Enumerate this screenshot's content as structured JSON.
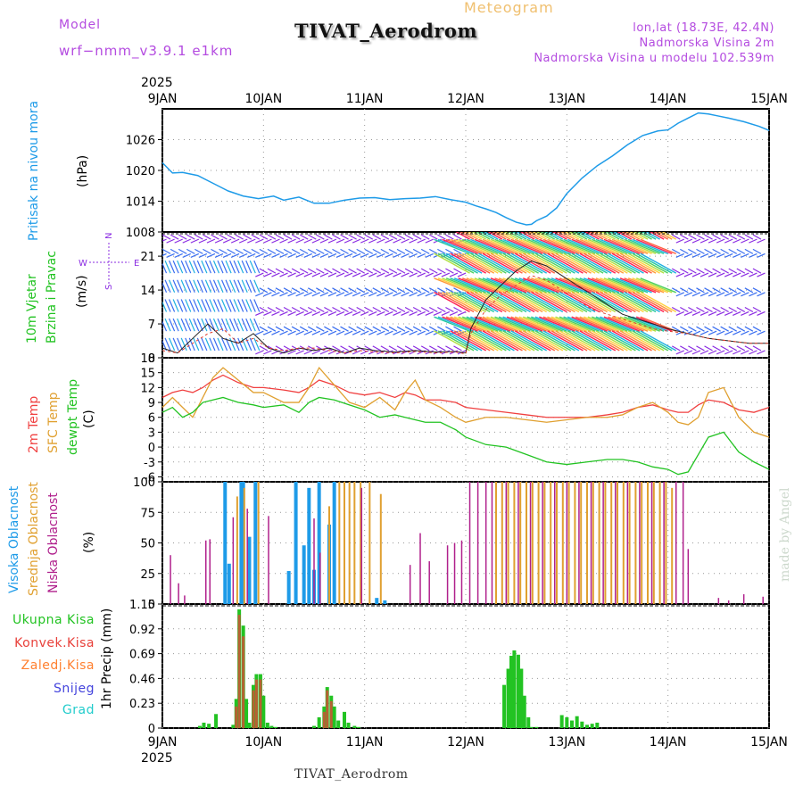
{
  "header": {
    "model_label": "Model",
    "model_version": "wrf−nmm_v3.9.1  e1km",
    "meteogram_label": "Meteogram",
    "station_title": "TIVAT_Aerodrom",
    "location": "lon,lat (18.73E, 42.4N)",
    "elevation": "Nadmorska Visina 2m",
    "model_elevation": "Nadmorska Visina u modelu 102.539m"
  },
  "footer": {
    "station": "TIVAT_Aerodrom",
    "credit": "made by Angel"
  },
  "colors": {
    "pressure": "#1e9be8",
    "wind_blue": "#3a6ef0",
    "wind_purple": "#8a2be2",
    "temp2m": "#f04040",
    "sfc_temp": "#e0a030",
    "dewpoint": "#22c322",
    "high_cloud": "#1e9be8",
    "mid_cloud": "#e0a030",
    "low_cloud": "#b0208c",
    "total_rain": "#22c322",
    "conv_rain": "#e8403a",
    "freezing_rain": "#ff8030",
    "snow": "#4444dd",
    "hail": "#22cccc",
    "gust_line": "#222222",
    "speed_line": "#e04030"
  },
  "chart_data": [
    {
      "type": "line",
      "panel": "pressure",
      "ylabel": [
        "Pritisak na nivou mora",
        "(hPa)"
      ],
      "ylim": [
        1008,
        1032
      ],
      "yticks": [
        1008,
        1014,
        1020,
        1026
      ],
      "x_tick_labels": [
        "9JAN",
        "10JAN",
        "11JAN",
        "12JAN",
        "13JAN",
        "14JAN",
        "15JAN"
      ],
      "x_top_year": "2025",
      "x_days": [
        0,
        0.5,
        1,
        1.5,
        2,
        2.5,
        3,
        3.5,
        4,
        4.5,
        5,
        5.5,
        6
      ],
      "series": [
        {
          "x": [
            0,
            0.1,
            0.2,
            0.35,
            0.5,
            0.65,
            0.8,
            0.95,
            1.1,
            1.2,
            1.35,
            1.5,
            1.65,
            1.8,
            1.95,
            2.1,
            2.25,
            2.4,
            2.55,
            2.7,
            2.85,
            3.0,
            3.1,
            3.2,
            3.3,
            3.4,
            3.5,
            3.6,
            3.65,
            3.7,
            3.8,
            3.9,
            4.0,
            4.15,
            4.3,
            4.45,
            4.6,
            4.75,
            4.9,
            5.0,
            5.1,
            5.2,
            5.3,
            5.4,
            5.5,
            5.6,
            5.75,
            5.9,
            6.0
          ],
          "y": [
            1021.5,
            1019.5,
            1019.6,
            1019.0,
            1017.5,
            1016.0,
            1015.0,
            1014.5,
            1015.0,
            1014.2,
            1014.8,
            1013.6,
            1013.6,
            1014.2,
            1014.6,
            1014.7,
            1014.3,
            1014.5,
            1014.6,
            1014.9,
            1014.3,
            1013.8,
            1013.1,
            1012.5,
            1011.8,
            1010.8,
            1009.9,
            1009.4,
            1009.5,
            1010.2,
            1011.1,
            1012.7,
            1015.5,
            1018.5,
            1020.9,
            1022.8,
            1025.0,
            1026.8,
            1027.7,
            1027.9,
            1029.2,
            1030.2,
            1031.2,
            1031.0,
            1030.6,
            1030.2,
            1029.5,
            1028.6,
            1027.8
          ]
        }
      ]
    },
    {
      "type": "line",
      "panel": "wind",
      "ylabel": [
        "10m Vjetar",
        "Brzina i Pravac",
        "(m/s)"
      ],
      "ylim": [
        0,
        26
      ],
      "yticks": [
        0,
        7,
        14,
        21
      ],
      "compass": [
        "N",
        "W",
        "E",
        "S"
      ],
      "series": [
        {
          "name": "gust",
          "x": [
            0,
            0.15,
            0.3,
            0.45,
            0.6,
            0.75,
            0.9,
            1.05,
            1.2,
            1.35,
            1.5,
            1.65,
            1.8,
            1.95,
            2.1,
            2.3,
            2.5,
            2.7,
            2.9,
            3.0,
            3.05,
            3.2,
            3.35,
            3.5,
            3.65,
            3.8,
            3.95,
            4.1,
            4.25,
            4.4,
            4.55,
            4.7,
            4.85,
            5.0,
            5.2,
            5.4,
            5.6,
            5.8,
            6.0
          ],
          "y": [
            2,
            1,
            4,
            7,
            4,
            3,
            5,
            2,
            1,
            2,
            1.5,
            2,
            1,
            2,
            1.5,
            1.2,
            1.5,
            1.2,
            1.3,
            1.0,
            6,
            12,
            15,
            18,
            20,
            19,
            17,
            15,
            13,
            11,
            9,
            8,
            7,
            6,
            5,
            4,
            3.5,
            3,
            3
          ]
        },
        {
          "name": "speed",
          "x": [
            0,
            0.15,
            0.3,
            0.45,
            0.6,
            0.75,
            0.9,
            1.05,
            1.2,
            1.35,
            1.5,
            1.65,
            1.8,
            1.95,
            2.1,
            2.3,
            2.5,
            2.7,
            2.9,
            3.0,
            3.05,
            3.2,
            3.35,
            3.5,
            3.65,
            3.8,
            3.95,
            4.1,
            4.25,
            4.4,
            4.55,
            4.7,
            4.85,
            5.0,
            5.2,
            5.4,
            5.6,
            5.8,
            6.0
          ],
          "y": [
            1.5,
            1,
            3,
            5,
            6,
            3,
            4,
            2,
            1.5,
            2,
            2,
            1.5,
            1,
            1.5,
            1.2,
            1,
            1.3,
            1,
            1.2,
            0.8,
            5,
            10,
            13,
            15,
            17,
            16,
            14,
            12,
            10,
            9,
            8,
            7,
            6,
            5.5,
            5,
            4,
            3.5,
            3,
            3
          ]
        }
      ]
    },
    {
      "type": "line",
      "panel": "temperature",
      "ylabel": [
        "2m Temp",
        "SFC Temp",
        "dewpt Temp",
        "(C)"
      ],
      "ylim": [
        -7,
        18
      ],
      "yticks": [
        -6,
        -3,
        0,
        3,
        6,
        9,
        12,
        15,
        18
      ],
      "series": [
        {
          "name": "2m Temp",
          "x": [
            0,
            0.1,
            0.2,
            0.3,
            0.4,
            0.5,
            0.6,
            0.75,
            0.9,
            1.0,
            1.2,
            1.35,
            1.45,
            1.55,
            1.7,
            1.85,
            2.0,
            2.15,
            2.3,
            2.4,
            2.5,
            2.6,
            2.75,
            2.9,
            3.0,
            3.2,
            3.4,
            3.6,
            3.8,
            4.0,
            4.2,
            4.4,
            4.55,
            4.7,
            4.85,
            5.0,
            5.1,
            5.2,
            5.3,
            5.4,
            5.55,
            5.7,
            5.85,
            6.0
          ],
          "y": [
            10,
            11,
            11.5,
            11,
            12,
            13.5,
            14.5,
            13,
            12,
            12,
            11.5,
            11,
            12,
            13.5,
            12.5,
            11,
            10.5,
            11,
            10,
            11,
            10.5,
            9.5,
            9.5,
            9,
            8,
            7.5,
            7,
            6.5,
            6,
            6,
            6,
            6.5,
            7,
            8,
            8.5,
            7.5,
            7,
            7,
            8.5,
            9.5,
            9,
            7.5,
            7,
            8
          ]
        },
        {
          "name": "SFC Temp",
          "x": [
            0,
            0.1,
            0.2,
            0.3,
            0.4,
            0.5,
            0.6,
            0.75,
            0.9,
            1.0,
            1.2,
            1.35,
            1.45,
            1.55,
            1.7,
            1.85,
            2.0,
            2.15,
            2.3,
            2.4,
            2.5,
            2.6,
            2.75,
            2.9,
            3.0,
            3.2,
            3.4,
            3.6,
            3.8,
            4.0,
            4.2,
            4.4,
            4.55,
            4.7,
            4.85,
            5.0,
            5.1,
            5.2,
            5.3,
            5.4,
            5.55,
            5.7,
            5.85,
            6.0
          ],
          "y": [
            8,
            10,
            8,
            6,
            10,
            14,
            16,
            13.5,
            11,
            11,
            9,
            9,
            12,
            16,
            12.5,
            9,
            8,
            10,
            7.5,
            11,
            13.5,
            9.5,
            8,
            6,
            5,
            6,
            6,
            5.5,
            5,
            5.5,
            6,
            6,
            6.5,
            8,
            9,
            7,
            5,
            4.5,
            6,
            11,
            12,
            6,
            3,
            2
          ]
        },
        {
          "name": "dewpt Temp",
          "x": [
            0,
            0.1,
            0.2,
            0.3,
            0.4,
            0.5,
            0.6,
            0.75,
            0.9,
            1.0,
            1.2,
            1.35,
            1.45,
            1.55,
            1.7,
            1.85,
            2.0,
            2.15,
            2.3,
            2.4,
            2.5,
            2.6,
            2.75,
            2.9,
            3.0,
            3.2,
            3.4,
            3.6,
            3.8,
            4.0,
            4.2,
            4.4,
            4.55,
            4.7,
            4.85,
            5.0,
            5.1,
            5.2,
            5.3,
            5.4,
            5.55,
            5.7,
            5.85,
            6.0
          ],
          "y": [
            7,
            8,
            6,
            7,
            9,
            9.5,
            10,
            9,
            8.5,
            8,
            8.5,
            7,
            9,
            10,
            9.5,
            8.5,
            7.5,
            6,
            6.5,
            6,
            5.5,
            5,
            5,
            3.5,
            2,
            0.5,
            0,
            -1.5,
            -3,
            -3.5,
            -3,
            -2.5,
            -2.5,
            -3,
            -4,
            -4.5,
            -5.5,
            -5,
            -1.5,
            2,
            3,
            -1,
            -3,
            -4.5
          ]
        }
      ]
    },
    {
      "type": "bar",
      "panel": "clouds",
      "ylabel": [
        "Visoka Oblacnost",
        "Srednja Oblacnost",
        "Niska Oblacnost",
        "(%)"
      ],
      "ylim": [
        0,
        100
      ],
      "yticks": [
        0,
        25,
        50,
        75,
        100
      ],
      "series": [
        {
          "name": "Visoka Oblacnost",
          "x": [
            0.62,
            0.66,
            0.78,
            0.8,
            0.86,
            0.92,
            1.25,
            1.32,
            1.4,
            1.45,
            1.5,
            1.55,
            1.65,
            1.7,
            2.12,
            2.2
          ],
          "values": [
            100,
            33,
            100,
            100,
            55,
            100,
            27,
            100,
            48,
            95,
            28,
            100,
            65,
            100,
            5,
            3
          ]
        },
        {
          "name": "Srednja Oblacnost",
          "x": [
            0.74,
            0.81,
            0.95,
            1.65,
            1.75,
            1.8,
            1.85,
            1.9,
            1.96,
            2.05,
            2.16,
            3.3,
            3.36,
            3.42,
            3.48,
            3.54,
            3.6,
            3.66,
            3.72,
            3.78,
            3.84,
            3.9,
            3.96,
            4.02,
            4.08,
            4.14,
            4.2,
            4.26,
            4.32,
            4.38,
            4.44,
            4.5,
            4.56,
            4.62,
            4.68,
            4.74,
            4.8,
            4.86,
            4.92,
            4.98,
            5.04
          ],
          "values": [
            88,
            95,
            100,
            80,
            100,
            100,
            100,
            100,
            100,
            100,
            90,
            100,
            100,
            100,
            100,
            100,
            100,
            100,
            100,
            100,
            100,
            100,
            100,
            100,
            100,
            100,
            100,
            100,
            100,
            100,
            100,
            100,
            100,
            100,
            100,
            100,
            100,
            100,
            100,
            100,
            95
          ]
        },
        {
          "name": "Niska Oblacnost",
          "x": [
            0.08,
            0.16,
            0.22,
            0.43,
            0.47,
            0.7,
            0.84,
            1.05,
            1.5,
            1.56,
            1.97,
            2.45,
            2.55,
            2.64,
            2.82,
            2.89,
            2.96,
            3.04,
            3.12,
            3.2,
            3.26,
            3.4,
            3.52,
            3.64,
            3.76,
            3.88,
            4.0,
            4.12,
            4.24,
            4.36,
            4.48,
            4.6,
            4.72,
            4.84,
            4.96,
            5.08,
            5.15,
            5.2,
            5.5,
            5.6,
            5.75,
            5.94
          ],
          "values": [
            40,
            17,
            7,
            52,
            53,
            71,
            78,
            72,
            70,
            42,
            95,
            32,
            58,
            35,
            48,
            50,
            52,
            100,
            100,
            100,
            100,
            100,
            100,
            100,
            100,
            100,
            100,
            100,
            100,
            100,
            100,
            100,
            100,
            100,
            100,
            100,
            100,
            45,
            5,
            3,
            8,
            6
          ]
        }
      ]
    },
    {
      "type": "bar",
      "panel": "precipitation",
      "ylabel": [
        "1hr Precip (mm)"
      ],
      "legend": [
        "Ukupna Kisa",
        "Konvek.Kisa",
        "Zaledj.Kisa",
        "Snijeg",
        "Grad"
      ],
      "ylim": [
        0,
        1.15
      ],
      "yticks": [
        0,
        0.23,
        0.46,
        0.69,
        0.92,
        1.15
      ],
      "x_tick_labels": [
        "9JAN",
        "10JAN",
        "11JAN",
        "12JAN",
        "13JAN",
        "14JAN",
        "15JAN"
      ],
      "x_bottom_year": "2025",
      "series": [
        {
          "name": "Ukupna Kisa",
          "x": [
            0.37,
            0.41,
            0.46,
            0.53,
            0.7,
            0.73,
            0.76,
            0.8,
            0.83,
            0.86,
            0.9,
            0.93,
            0.97,
            1.0,
            1.04,
            1.08,
            1.12,
            1.5,
            1.55,
            1.6,
            1.63,
            1.67,
            1.7,
            1.74,
            1.8,
            1.84,
            1.9,
            1.94,
            3.38,
            3.42,
            3.45,
            3.48,
            3.52,
            3.55,
            3.58,
            3.62,
            3.65,
            3.7,
            3.95,
            4.0,
            4.05,
            4.1,
            4.15,
            4.2,
            4.25,
            4.3
          ],
          "values": [
            0.02,
            0.05,
            0.04,
            0.13,
            0.03,
            0.27,
            1.1,
            0.95,
            0.27,
            0.05,
            0.4,
            0.5,
            0.5,
            0.3,
            0.05,
            0.02,
            0.01,
            0.02,
            0.1,
            0.2,
            0.38,
            0.3,
            0.2,
            0.07,
            0.15,
            0.05,
            0.02,
            0.01,
            0.4,
            0.55,
            0.67,
            0.72,
            0.68,
            0.55,
            0.3,
            0.1,
            0.01,
            0.01,
            0.12,
            0.1,
            0.07,
            0.11,
            0.06,
            0.03,
            0.04,
            0.05
          ]
        },
        {
          "name": "Konvek.Kisa",
          "x": [
            0.73,
            0.76,
            0.8,
            0.9,
            0.93,
            0.97,
            1.6,
            1.63,
            1.67
          ],
          "values": [
            0.2,
            1.05,
            0.85,
            0.35,
            0.45,
            0.45,
            0.15,
            0.35,
            0.25
          ]
        }
      ]
    }
  ]
}
